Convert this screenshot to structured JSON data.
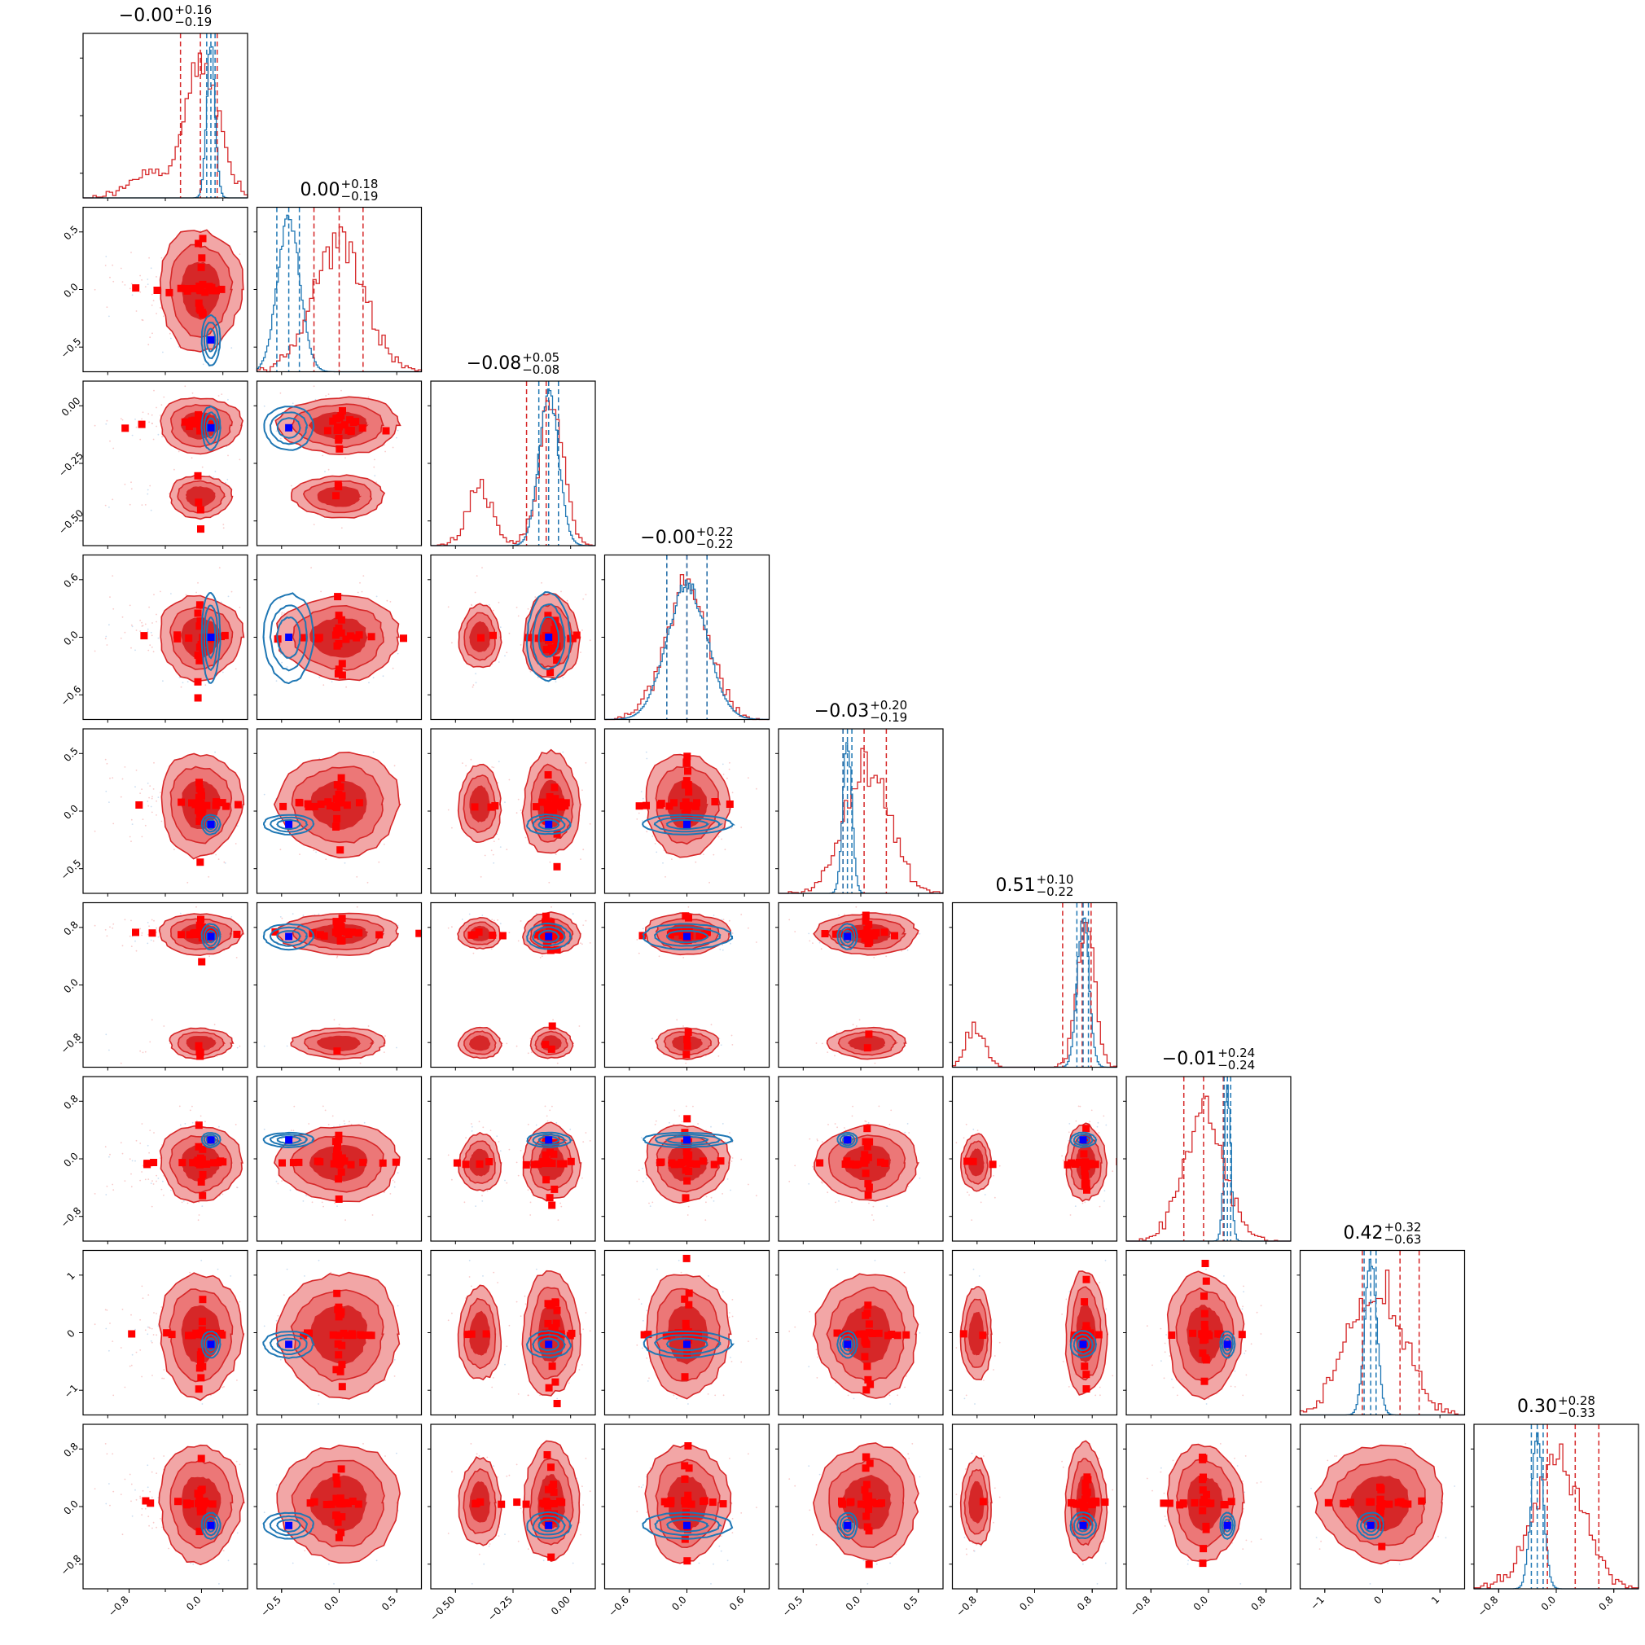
{
  "chart_data": {
    "type": "corner",
    "n_params": 9,
    "colors": {
      "posterior_a": "#d62728",
      "posterior_b": "#1f77b4",
      "truth_marker_a": "#ff0000",
      "truth_marker_b": "#0000ff"
    },
    "titles": [
      {
        "median": "−0.00",
        "plus": "+0.16",
        "minus": "−0.19"
      },
      {
        "median": "0.00",
        "plus": "+0.18",
        "minus": "−0.19"
      },
      {
        "median": "−0.08",
        "plus": "+0.05",
        "minus": "−0.08"
      },
      {
        "median": "−0.00",
        "plus": "+0.22",
        "minus": "−0.22"
      },
      {
        "median": "−0.03",
        "plus": "+0.20",
        "minus": "−0.19"
      },
      {
        "median": "0.51",
        "plus": "+0.10",
        "minus": "−0.22"
      },
      {
        "median": "−0.01",
        "plus": "+0.24",
        "minus": "−0.24"
      },
      {
        "median": "0.42",
        "plus": "+0.32",
        "minus": "−0.63"
      },
      {
        "median": "0.30",
        "plus": "+0.28",
        "minus": "−0.33"
      }
    ],
    "ranges": [
      [
        -1.12,
        0.45
      ],
      [
        -0.62,
        0.62
      ],
      [
        -0.55,
        0.12
      ],
      [
        -0.9,
        0.9
      ],
      [
        -0.8,
        0.68
      ],
      [
        -0.95,
        0.9
      ],
      [
        -0.95,
        1.05
      ],
      [
        -1.25,
        1.5
      ],
      [
        -0.9,
        1.05
      ]
    ],
    "x_ticks": [
      [
        "−0.8",
        "0.0"
      ],
      [
        "−0.5",
        "0.0",
        "0.5"
      ],
      [
        "−0.50",
        "−0.25",
        "0.00"
      ],
      [
        "−0.6",
        "0.0",
        "0.6"
      ],
      [
        "−0.5",
        "0.0",
        "0.5"
      ],
      [
        "−0.8",
        "0.0",
        "0.8"
      ],
      [
        "−0.8",
        "0.0",
        "0.8"
      ],
      [
        "−1",
        "0",
        "1"
      ],
      [
        "−0.8",
        "0.0",
        "0.8"
      ]
    ],
    "y_ticks": [
      [],
      [
        "0.5",
        "0.0",
        "−0.5"
      ],
      [
        "0.00",
        "−0.25",
        "−0.50"
      ],
      [
        "0.6",
        "0.0",
        "−0.6"
      ],
      [
        "0.5",
        "0.0",
        "−0.5"
      ],
      [
        "0.8",
        "0.0",
        "−0.8"
      ],
      [
        "0.8",
        "0.0",
        "−0.8"
      ],
      [
        "1",
        "0",
        "−1"
      ],
      [
        "0.8",
        "0.0",
        "−0.8"
      ]
    ],
    "red_quantiles": [
      [
        -0.19,
        0.0,
        0.16
      ],
      [
        -0.19,
        0.0,
        0.18
      ],
      [
        -0.16,
        -0.08,
        -0.03
      ],
      [
        -0.22,
        0.0,
        0.22
      ],
      [
        -0.22,
        -0.03,
        0.17
      ],
      [
        0.29,
        0.51,
        0.61
      ],
      [
        -0.25,
        -0.01,
        0.23
      ],
      [
        -0.21,
        0.42,
        0.74
      ],
      [
        -0.03,
        0.3,
        0.58
      ]
    ],
    "blue_quantiles": [
      [
        0.06,
        0.1,
        0.14
      ],
      [
        -0.47,
        -0.38,
        -0.3
      ],
      [
        -0.11,
        -0.07,
        -0.03
      ],
      [
        -0.22,
        0.0,
        0.22
      ],
      [
        -0.22,
        -0.18,
        -0.14
      ],
      [
        0.45,
        0.52,
        0.58
      ],
      [
        0.24,
        0.28,
        0.32
      ],
      [
        -0.18,
        -0.07,
        0.02
      ],
      [
        -0.22,
        -0.15,
        -0.08
      ]
    ],
    "truth_blue": [
      0.1,
      -0.38,
      -0.07,
      0.0,
      -0.18,
      0.52,
      0.28,
      -0.07,
      -0.15
    ]
  }
}
